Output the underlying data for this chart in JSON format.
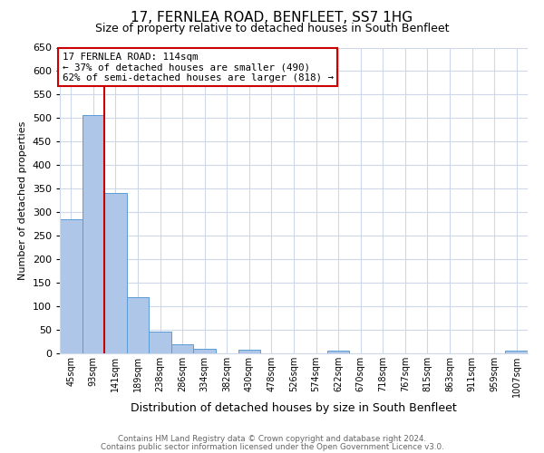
{
  "title": "17, FERNLEA ROAD, BENFLEET, SS7 1HG",
  "subtitle": "Size of property relative to detached houses in South Benfleet",
  "xlabel": "Distribution of detached houses by size in South Benfleet",
  "ylabel": "Number of detached properties",
  "bar_labels": [
    "45sqm",
    "93sqm",
    "141sqm",
    "189sqm",
    "238sqm",
    "286sqm",
    "334sqm",
    "382sqm",
    "430sqm",
    "478sqm",
    "526sqm",
    "574sqm",
    "622sqm",
    "670sqm",
    "718sqm",
    "767sqm",
    "815sqm",
    "863sqm",
    "911sqm",
    "959sqm",
    "1007sqm"
  ],
  "bar_values": [
    285,
    507,
    340,
    120,
    47,
    20,
    10,
    0,
    8,
    0,
    0,
    0,
    5,
    0,
    0,
    0,
    0,
    0,
    0,
    0,
    5
  ],
  "bar_color": "#aec6e8",
  "bar_edge_color": "#5b9bd5",
  "vline_x": 1.5,
  "vline_color": "#cc0000",
  "ylim": [
    0,
    650
  ],
  "yticks": [
    0,
    50,
    100,
    150,
    200,
    250,
    300,
    350,
    400,
    450,
    500,
    550,
    600,
    650
  ],
  "annotation_title": "17 FERNLEA ROAD: 114sqm",
  "annotation_line1": "← 37% of detached houses are smaller (490)",
  "annotation_line2": "62% of semi-detached houses are larger (818) →",
  "annotation_box_color": "#ffffff",
  "annotation_box_edge": "#cc0000",
  "footer1": "Contains HM Land Registry data © Crown copyright and database right 2024.",
  "footer2": "Contains public sector information licensed under the Open Government Licence v3.0.",
  "bg_color": "#ffffff",
  "grid_color": "#cdd8ea",
  "title_fontsize": 11,
  "subtitle_fontsize": 9,
  "xlabel_fontsize": 9,
  "ylabel_fontsize": 8,
  "tick_fontsize": 8,
  "xtick_fontsize": 7
}
